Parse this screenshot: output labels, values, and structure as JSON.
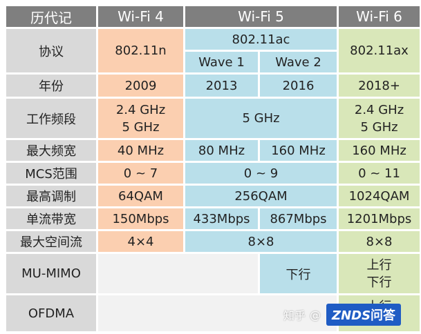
{
  "headers": {
    "corner": "历代记",
    "wifi4": "Wi-Fi 4",
    "wifi5": "Wi-Fi 5",
    "wifi6": "Wi-Fi 6"
  },
  "rows": {
    "protocol": {
      "label": "协议",
      "wifi4": "802.11n",
      "wifi5": "802.11ac",
      "wave1": "Wave 1",
      "wave2": "Wave 2",
      "wifi6": "802.11ax"
    },
    "year": {
      "label": "年份",
      "wifi4": "2009",
      "wave1": "2013",
      "wave2": "2016",
      "wifi6": "2018+"
    },
    "band": {
      "label": "工作频段",
      "wifi4_a": "2.4 GHz",
      "wifi4_b": "5 GHz",
      "wifi5": "5 GHz",
      "wifi6_a": "2.4 GHz",
      "wifi6_b": "5 GHz"
    },
    "bandwidth": {
      "label": "最大频宽",
      "wifi4": "40 MHz",
      "wave1": "80 MHz",
      "wave2": "160 MHz",
      "wifi6": "160 MHz"
    },
    "mcs": {
      "label": "MCS范围",
      "wifi4": "0 ~ 7",
      "wifi5": "0 ~ 9",
      "wifi6": "0 ~ 11"
    },
    "modulation": {
      "label": "最高调制",
      "wifi4": "64QAM",
      "wifi5": "256QAM",
      "wifi6": "1024QAM"
    },
    "stream_bw": {
      "label": "单流带宽",
      "wifi4": "150Mbps",
      "wave1": "433Mbps",
      "wave2": "867Mbps",
      "wifi6": "1201Mbps"
    },
    "spatial": {
      "label": "最大空间流",
      "wifi4": "4×4",
      "wifi5": "8×8",
      "wifi6": "8×8"
    },
    "mumimo": {
      "label": "MU-MIMO",
      "wave2": "下行",
      "wifi6_a": "上行",
      "wifi6_b": "下行"
    },
    "ofdma": {
      "label": "OFDMA",
      "wifi6": "上行"
    }
  },
  "watermark": {
    "zhihu": "知乎",
    "at": "@",
    "logo": "ZNDS",
    "logo_zh": "问答"
  },
  "colors": {
    "header": "#7f7f7f",
    "label": "#d9d9d9",
    "wifi4": "#fbcfb0",
    "wifi5": "#b9dfea",
    "wifi6": "#d9e7b9"
  }
}
